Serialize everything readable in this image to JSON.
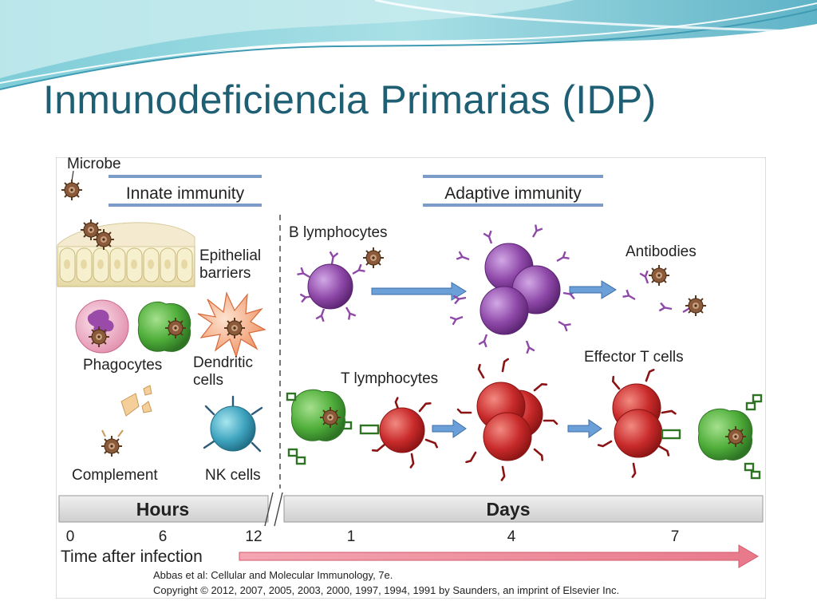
{
  "slide": {
    "title": "Inmunodeficiencia Primarias (IDP)"
  },
  "colors": {
    "title": "#1f5f73",
    "banner": "#5fb8c8",
    "arrow": "#e8798a",
    "b_cell": "#8e48a8",
    "t_cell": "#c82a2a",
    "phagocyte": "#4fae3a"
  },
  "figure": {
    "microbe": "Microbe",
    "innate_header": "Innate immunity",
    "adaptive_header": "Adaptive immunity",
    "innate_cells": {
      "epithelial_1": "Epithelial",
      "epithelial_2": "barriers",
      "phagocytes": "Phagocytes",
      "dendritic_1": "Dendritic",
      "dendritic_2": "cells",
      "complement": "Complement",
      "nk": "NK cells"
    },
    "adaptive_cells": {
      "b_lymphocytes": "B lymphocytes",
      "antibodies": "Antibodies",
      "t_lymphocytes": "T lymphocytes",
      "effector_t": "Effector T cells"
    },
    "timeline": {
      "hours": "Hours",
      "days": "Days",
      "ticks": [
        "0",
        "6",
        "12",
        "1",
        "4",
        "7"
      ],
      "axis_label": "Time after infection"
    },
    "citation_1": "Abbas et al: Cellular and Molecular Immunology, 7e.",
    "citation_2": "Copyright © 2012, 2007, 2005, 2003, 2000, 1997, 1994, 1991 by Saunders, an imprint of Elsevier Inc."
  }
}
